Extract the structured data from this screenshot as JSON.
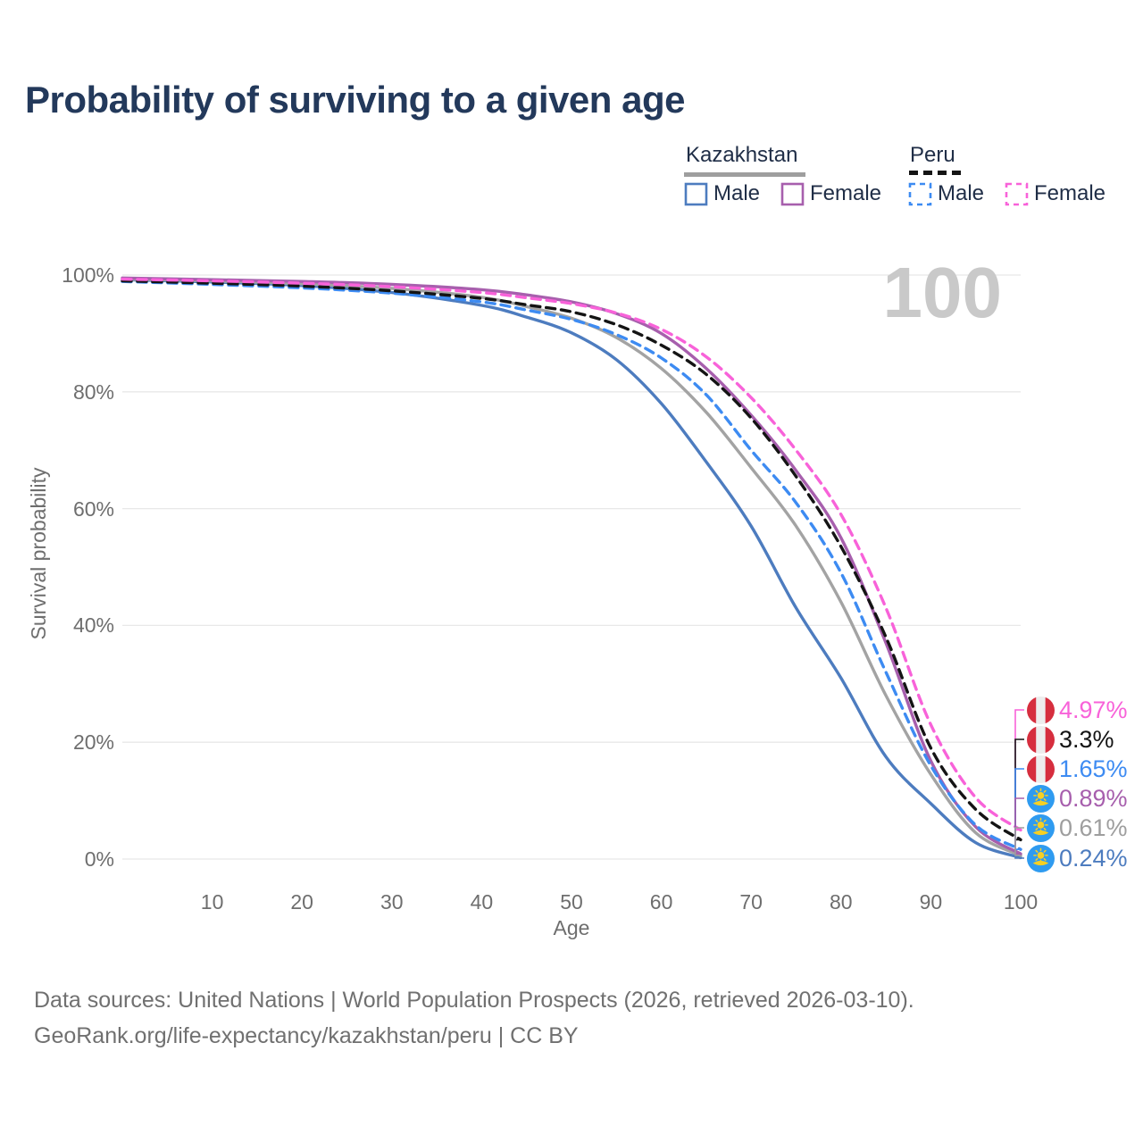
{
  "title": "Probability of surviving to a given age",
  "watermark": "100",
  "legend": {
    "kazakhstan": {
      "label": "Kazakhstan",
      "male": "Male",
      "female": "Female"
    },
    "peru": {
      "label": "Peru",
      "male": "Male",
      "female": "Female"
    }
  },
  "colors": {
    "kz_male": "#4d7cbf",
    "kz_total": "#a3a3a3",
    "kz_female": "#a75fad",
    "peru_male": "#3d8bf2",
    "peru_total": "#141414",
    "peru_female": "#f862d9",
    "gridline": "#e8e8e8",
    "title_text": "#23395b",
    "axis_text": "#6e6e6e",
    "watermark_text": "#c9c9c9",
    "footer_text": "#707070",
    "kz_flag_blue": "#2f9bf0",
    "kz_flag_gold": "#f8d022",
    "peru_flag_red": "#d62e3e",
    "peru_flag_white": "#ededed"
  },
  "y_axis": {
    "title": "Survival probability",
    "ticks": [
      {
        "label": "100%",
        "value": 100
      },
      {
        "label": "80%",
        "value": 80
      },
      {
        "label": "60%",
        "value": 60
      },
      {
        "label": "40%",
        "value": 40
      },
      {
        "label": "20%",
        "value": 20
      },
      {
        "label": "0%",
        "value": 0
      }
    ]
  },
  "x_axis": {
    "title": "Age",
    "ticks": [
      {
        "label": "10",
        "value": 10
      },
      {
        "label": "20",
        "value": 20
      },
      {
        "label": "30",
        "value": 30
      },
      {
        "label": "40",
        "value": 40
      },
      {
        "label": "50",
        "value": 50
      },
      {
        "label": "60",
        "value": 60
      },
      {
        "label": "70",
        "value": 70
      },
      {
        "label": "80",
        "value": 80
      },
      {
        "label": "90",
        "value": 90
      },
      {
        "label": "100",
        "value": 100
      }
    ]
  },
  "end_labels": [
    {
      "value": "4.97%",
      "country": "peru",
      "color": "#f862d9"
    },
    {
      "value": "3.3%",
      "country": "peru",
      "color": "#141414"
    },
    {
      "value": "1.65%",
      "country": "peru",
      "color": "#3d8bf2"
    },
    {
      "value": "0.89%",
      "country": "kazakhstan",
      "color": "#a75fad"
    },
    {
      "value": "0.61%",
      "country": "kazakhstan",
      "color": "#9e9e9e"
    },
    {
      "value": "0.24%",
      "country": "kazakhstan",
      "color": "#4d7cbf"
    }
  ],
  "footer": {
    "line1": "Data sources: United Nations | World Population Prospects (2026, retrieved 2026-03-10).",
    "line2": "GeoRank.org/life-expectancy/kazakhstan/peru | CC BY"
  },
  "chart_data": {
    "type": "line",
    "title": "Probability of surviving to a given age",
    "xlabel": "Age",
    "ylabel": "Survival probability",
    "xlim": [
      0,
      100
    ],
    "ylim": [
      0,
      100
    ],
    "grid": "horizontal",
    "legend_position": "top-right",
    "x": [
      0,
      10,
      20,
      30,
      40,
      45,
      50,
      55,
      60,
      65,
      70,
      75,
      80,
      85,
      90,
      95,
      100
    ],
    "series": [
      {
        "name": "Kazakhstan Male",
        "style": "solid",
        "color": "#4d7cbf",
        "end_label": "0.24%",
        "values": [
          99.2,
          98.8,
          98.2,
          97.0,
          94.8,
          92.8,
          90.1,
          85.5,
          78.0,
          68.0,
          57.0,
          43.0,
          31.0,
          17.5,
          9.5,
          2.8,
          0.24
        ]
      },
      {
        "name": "Kazakhstan Both sexes",
        "style": "solid",
        "color": "#a3a3a3",
        "end_label": "0.61%",
        "values": [
          99.3,
          99.0,
          98.5,
          97.7,
          96.2,
          94.6,
          92.6,
          89.3,
          84.0,
          76.5,
          67.0,
          57.0,
          44.0,
          28.0,
          14.5,
          4.5,
          0.61
        ]
      },
      {
        "name": "Kazakhstan Female",
        "style": "solid",
        "color": "#a75fad",
        "end_label": "0.89%",
        "values": [
          99.5,
          99.2,
          98.9,
          98.4,
          97.5,
          96.6,
          95.4,
          93.4,
          90.0,
          84.0,
          76.0,
          66.5,
          55.0,
          37.0,
          16.8,
          5.5,
          0.89
        ]
      },
      {
        "name": "Peru Male",
        "style": "dashed",
        "color": "#3d8bf2",
        "end_label": "1.65%",
        "values": [
          98.9,
          98.4,
          97.8,
          96.9,
          95.4,
          94.0,
          92.4,
          89.8,
          85.8,
          79.5,
          70.0,
          61.0,
          49.0,
          32.0,
          16.0,
          5.8,
          1.65
        ]
      },
      {
        "name": "Peru Both sexes",
        "style": "dashed",
        "color": "#141414",
        "end_label": "3.3%",
        "values": [
          99.0,
          98.6,
          98.1,
          97.3,
          96.0,
          94.9,
          93.7,
          91.5,
          88.0,
          83.0,
          75.5,
          65.5,
          53.5,
          38.0,
          19.0,
          8.5,
          3.3
        ]
      },
      {
        "name": "Peru Female",
        "style": "dashed",
        "color": "#f862d9",
        "end_label": "4.97%",
        "values": [
          99.3,
          99.0,
          98.6,
          98.0,
          97.0,
          96.1,
          95.1,
          93.5,
          90.7,
          86.0,
          79.0,
          70.0,
          59.0,
          43.0,
          23.0,
          10.5,
          4.97
        ]
      }
    ]
  }
}
